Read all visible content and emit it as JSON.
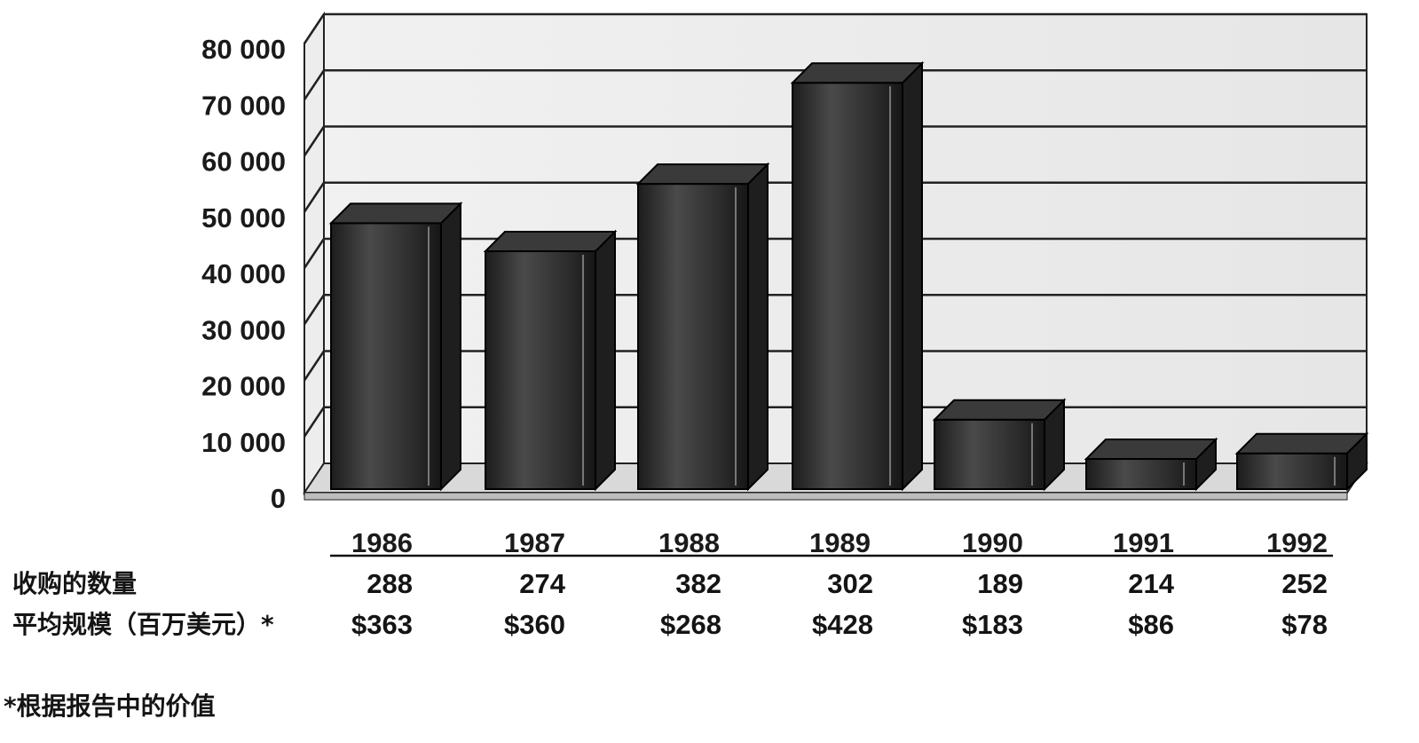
{
  "chart_data": {
    "type": "bar",
    "categories": [
      "1986",
      "1987",
      "1988",
      "1989",
      "1990",
      "1991",
      "1992"
    ],
    "values": [
      48000,
      43000,
      55000,
      73000,
      13000,
      6000,
      7000
    ],
    "ylim": [
      0,
      80000
    ],
    "yticks": [
      "0",
      "10 000",
      "20 000",
      "30 000",
      "40 000",
      "50 000",
      "60 000",
      "70 000",
      "80 000"
    ],
    "grid": true,
    "bar_color": "#2e2e2e"
  },
  "table": {
    "count_label": "收购的数量",
    "counts": [
      "288",
      "274",
      "382",
      "302",
      "189",
      "214",
      "252"
    ],
    "size_label": "平均规模（百万美元）*",
    "sizes": [
      "$363",
      "$360",
      "$268",
      "$428",
      "$183",
      "$86",
      "$78"
    ]
  },
  "footnote": "*根据报告中的价值"
}
